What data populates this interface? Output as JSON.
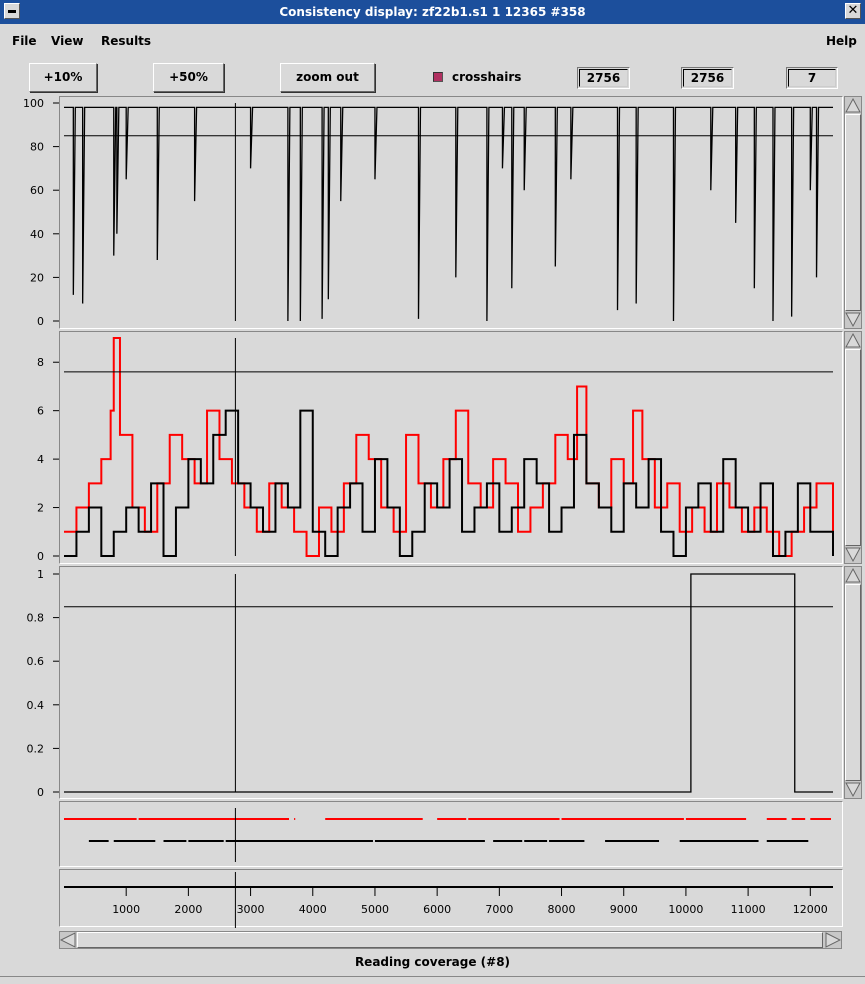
{
  "window": {
    "title": "Consistency display: zf22b1.s1 1 12365 #358",
    "close_glyph": "✕"
  },
  "menu": {
    "file": "File",
    "view": "View",
    "results": "Results",
    "help": "Help"
  },
  "toolbar": {
    "zoom10": "+10%",
    "zoom50": "+50%",
    "zoom_out": "zoom out",
    "crosshairs_label": "crosshairs",
    "crosshairs_checked": true,
    "field1": "2756",
    "field2": "2756",
    "field3": "7"
  },
  "status_text": "Reading coverage (#8)",
  "colors": {
    "trace": "#000000",
    "forward": "#ff0000",
    "background": "#d9d9d9",
    "titlebar": "#1c4f9c"
  },
  "icons": {
    "menu": "window-menu-icon",
    "close": "close-icon",
    "up": "scroll-up-arrow-icon",
    "down": "scroll-down-arrow-icon",
    "left": "scroll-left-arrow-icon",
    "right": "scroll-right-arrow-icon"
  },
  "chart_data": [
    {
      "type": "line",
      "name": "consistency",
      "x_range": [
        0,
        12365
      ],
      "ylim": [
        0,
        100
      ],
      "yticks": [
        "0",
        "20",
        "40",
        "60",
        "80",
        "100"
      ],
      "threshold": 85,
      "crosshair_x": 2756,
      "baseline": 98,
      "spikes": [
        {
          "x": 150,
          "y": 12
        },
        {
          "x": 300,
          "y": 8
        },
        {
          "x": 800,
          "y": 30
        },
        {
          "x": 850,
          "y": 40
        },
        {
          "x": 1000,
          "y": 65
        },
        {
          "x": 1500,
          "y": 28
        },
        {
          "x": 2100,
          "y": 55
        },
        {
          "x": 3000,
          "y": 70
        },
        {
          "x": 3600,
          "y": 0
        },
        {
          "x": 3800,
          "y": 0
        },
        {
          "x": 4150,
          "y": 1
        },
        {
          "x": 4250,
          "y": 10
        },
        {
          "x": 4450,
          "y": 55
        },
        {
          "x": 5000,
          "y": 65
        },
        {
          "x": 5700,
          "y": 1
        },
        {
          "x": 6300,
          "y": 20
        },
        {
          "x": 6800,
          "y": 0
        },
        {
          "x": 7050,
          "y": 70
        },
        {
          "x": 7200,
          "y": 15
        },
        {
          "x": 7400,
          "y": 60
        },
        {
          "x": 7900,
          "y": 25
        },
        {
          "x": 8150,
          "y": 65
        },
        {
          "x": 8900,
          "y": 5
        },
        {
          "x": 9200,
          "y": 8
        },
        {
          "x": 9800,
          "y": 0
        },
        {
          "x": 10400,
          "y": 60
        },
        {
          "x": 10800,
          "y": 45
        },
        {
          "x": 11100,
          "y": 15
        },
        {
          "x": 11400,
          "y": 0
        },
        {
          "x": 11700,
          "y": 2
        },
        {
          "x": 12000,
          "y": 60
        },
        {
          "x": 12100,
          "y": 20
        }
      ]
    },
    {
      "type": "line",
      "name": "coverage",
      "x_range": [
        0,
        12365
      ],
      "ylim": [
        0,
        9
      ],
      "yticks": [
        "0",
        "2",
        "4",
        "6",
        "8"
      ],
      "threshold": 7.6,
      "series": [
        {
          "color": "red",
          "x": [
            0,
            200,
            400,
            600,
            750,
            800,
            900,
            1100,
            1300,
            1500,
            1700,
            1900,
            2100,
            2300,
            2500,
            2700,
            2900,
            3100,
            3300,
            3500,
            3700,
            3900,
            4100,
            4300,
            4500,
            4700,
            4900,
            5100,
            5300,
            5500,
            5700,
            5900,
            6100,
            6300,
            6500,
            6700,
            6900,
            7100,
            7300,
            7500,
            7700,
            7900,
            8100,
            8250,
            8400,
            8600,
            8800,
            9000,
            9150,
            9300,
            9500,
            9700,
            9900,
            10100,
            10300,
            10500,
            10700,
            10900,
            11100,
            11300,
            11500,
            11700,
            11900,
            12100,
            12365
          ],
          "y": [
            1,
            2,
            3,
            4,
            6,
            9,
            5,
            2,
            1,
            3,
            5,
            4,
            3,
            6,
            4,
            3,
            2,
            1,
            3,
            2,
            1,
            0,
            2,
            1,
            3,
            5,
            4,
            2,
            1,
            5,
            3,
            2,
            4,
            6,
            3,
            2,
            4,
            3,
            1,
            2,
            3,
            5,
            4,
            7,
            3,
            2,
            4,
            3,
            6,
            4,
            2,
            3,
            1,
            2,
            1,
            3,
            2,
            1,
            2,
            1,
            0,
            1,
            2,
            3,
            1
          ]
        },
        {
          "color": "black",
          "x": [
            0,
            200,
            400,
            600,
            800,
            1000,
            1200,
            1400,
            1600,
            1800,
            2000,
            2200,
            2400,
            2600,
            2800,
            3000,
            3200,
            3400,
            3600,
            3800,
            4000,
            4200,
            4400,
            4600,
            4800,
            5000,
            5200,
            5400,
            5600,
            5800,
            6000,
            6200,
            6400,
            6600,
            6800,
            7000,
            7200,
            7400,
            7600,
            7800,
            8000,
            8200,
            8400,
            8600,
            8800,
            9000,
            9200,
            9400,
            9600,
            9800,
            10000,
            10200,
            10400,
            10600,
            10800,
            11000,
            11200,
            11400,
            11600,
            11800,
            12000,
            12365
          ],
          "y": [
            0,
            1,
            2,
            0,
            1,
            2,
            1,
            3,
            0,
            2,
            4,
            3,
            5,
            6,
            3,
            2,
            1,
            3,
            2,
            6,
            1,
            0,
            2,
            3,
            1,
            4,
            2,
            0,
            1,
            3,
            2,
            4,
            1,
            2,
            3,
            1,
            2,
            4,
            3,
            1,
            2,
            5,
            3,
            2,
            1,
            3,
            2,
            4,
            1,
            0,
            2,
            3,
            1,
            4,
            2,
            1,
            3,
            0,
            1,
            3,
            1,
            0
          ]
        }
      ]
    },
    {
      "type": "line",
      "name": "problem",
      "x_range": [
        0,
        12365
      ],
      "ylim": [
        0,
        1
      ],
      "yticks": [
        "0",
        "0.2",
        "0.4",
        "0.6",
        "0.8",
        "1"
      ],
      "threshold": 0.85,
      "x": [
        0,
        10080,
        10080,
        11750,
        11750,
        12365
      ],
      "y": [
        0,
        0,
        1,
        1,
        0,
        0
      ]
    },
    {
      "type": "segments",
      "name": "readings",
      "red": [
        [
          0,
          1200
        ],
        [
          1200,
          3650
        ],
        [
          3700,
          3750
        ],
        [
          4200,
          5800
        ],
        [
          6000,
          6500
        ],
        [
          6500,
          8000
        ],
        [
          8000,
          10000
        ],
        [
          10000,
          11000
        ],
        [
          11300,
          11650
        ],
        [
          11700,
          11950
        ],
        [
          12000,
          12365
        ]
      ],
      "black": [
        [
          400,
          750
        ],
        [
          800,
          1500
        ],
        [
          1600,
          2000
        ],
        [
          2000,
          2600
        ],
        [
          2600,
          5000
        ],
        [
          5000,
          6800
        ],
        [
          6900,
          7400
        ],
        [
          7400,
          7800
        ],
        [
          7800,
          8400
        ],
        [
          8700,
          9600
        ],
        [
          9900,
          11200
        ],
        [
          11300,
          12000
        ]
      ]
    },
    {
      "type": "axis",
      "x_range": [
        0,
        12365
      ],
      "xticks": [
        "1000",
        "2000",
        "3000",
        "4000",
        "5000",
        "6000",
        "7000",
        "8000",
        "9000",
        "10000",
        "11000",
        "12000"
      ]
    }
  ]
}
